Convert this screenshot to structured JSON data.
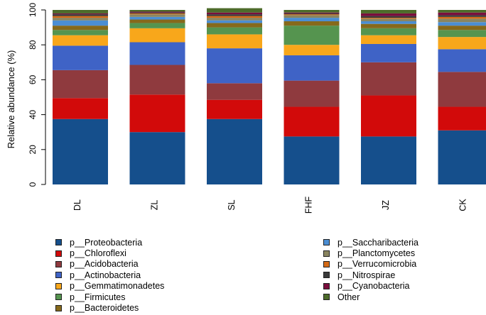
{
  "chart_data": {
    "type": "bar",
    "stacked": true,
    "ylabel": "Relative abundance (%)",
    "xlabel": "",
    "ylim": [
      0,
      100
    ],
    "yticks": [
      0,
      20,
      40,
      60,
      80,
      100
    ],
    "categories": [
      "DL",
      "ZL",
      "SL",
      "FHF",
      "JZ",
      "CK"
    ],
    "series": [
      {
        "name": "p__Proteobacteria",
        "color": "#154f8c",
        "values": [
          37.5,
          30.0,
          37.5,
          27.5,
          27.5,
          31.0
        ]
      },
      {
        "name": "p__Chloroflexi",
        "color": "#d20a0a",
        "values": [
          12.0,
          21.5,
          11.0,
          17.0,
          23.5,
          13.5
        ]
      },
      {
        "name": "p__Acidobacteria",
        "color": "#8f3a3e",
        "values": [
          16.0,
          17.0,
          9.5,
          15.0,
          19.0,
          20.0
        ]
      },
      {
        "name": "p__Actinobacteria",
        "color": "#3f63c6",
        "values": [
          14.0,
          13.0,
          20.0,
          14.5,
          10.5,
          13.0
        ]
      },
      {
        "name": "p__Gemmatimonadetes",
        "color": "#f8a71b",
        "values": [
          6.0,
          8.0,
          8.0,
          6.0,
          5.0,
          7.0
        ]
      },
      {
        "name": "p__Firmicutes",
        "color": "#55944f",
        "values": [
          3.0,
          3.0,
          4.0,
          11.0,
          4.0,
          4.0
        ]
      },
      {
        "name": "p__Bacteroidetes",
        "color": "#86691b",
        "values": [
          2.5,
          2.0,
          2.5,
          2.5,
          2.5,
          2.5
        ]
      },
      {
        "name": "p__Saccharibacteria",
        "color": "#4b8ed3",
        "values": [
          3.0,
          1.5,
          1.5,
          2.0,
          1.5,
          2.0
        ]
      },
      {
        "name": "p__Planctomycetes",
        "color": "#8a8560",
        "values": [
          1.5,
          1.5,
          1.5,
          1.5,
          1.5,
          2.0
        ]
      },
      {
        "name": "p__Verrucomicrobia",
        "color": "#d46a16",
        "values": [
          1.0,
          0.5,
          1.0,
          0.5,
          0.5,
          1.0
        ]
      },
      {
        "name": "p__Nitrospirae",
        "color": "#3a3a3a",
        "values": [
          1.0,
          0.5,
          1.0,
          0.5,
          1.0,
          1.0
        ]
      },
      {
        "name": "p__Cyanobacteria",
        "color": "#7a0e3d",
        "values": [
          0.5,
          0.5,
          1.0,
          0.5,
          1.5,
          1.5
        ]
      },
      {
        "name": "Other",
        "color": "#4d6b2a",
        "values": [
          2.0,
          1.0,
          2.5,
          1.5,
          2.0,
          1.5
        ]
      }
    ],
    "legend_columns": [
      [
        "p__Proteobacteria",
        "p__Chloroflexi",
        "p__Acidobacteria",
        "p__Actinobacteria",
        "p__Gemmatimonadetes",
        "p__Firmicutes",
        "p__Bacteroidetes"
      ],
      [
        "p__Saccharibacteria",
        "p__Planctomycetes",
        "p__Verrucomicrobia",
        "p__Nitrospirae",
        "p__Cyanobacteria",
        "Other"
      ]
    ]
  }
}
